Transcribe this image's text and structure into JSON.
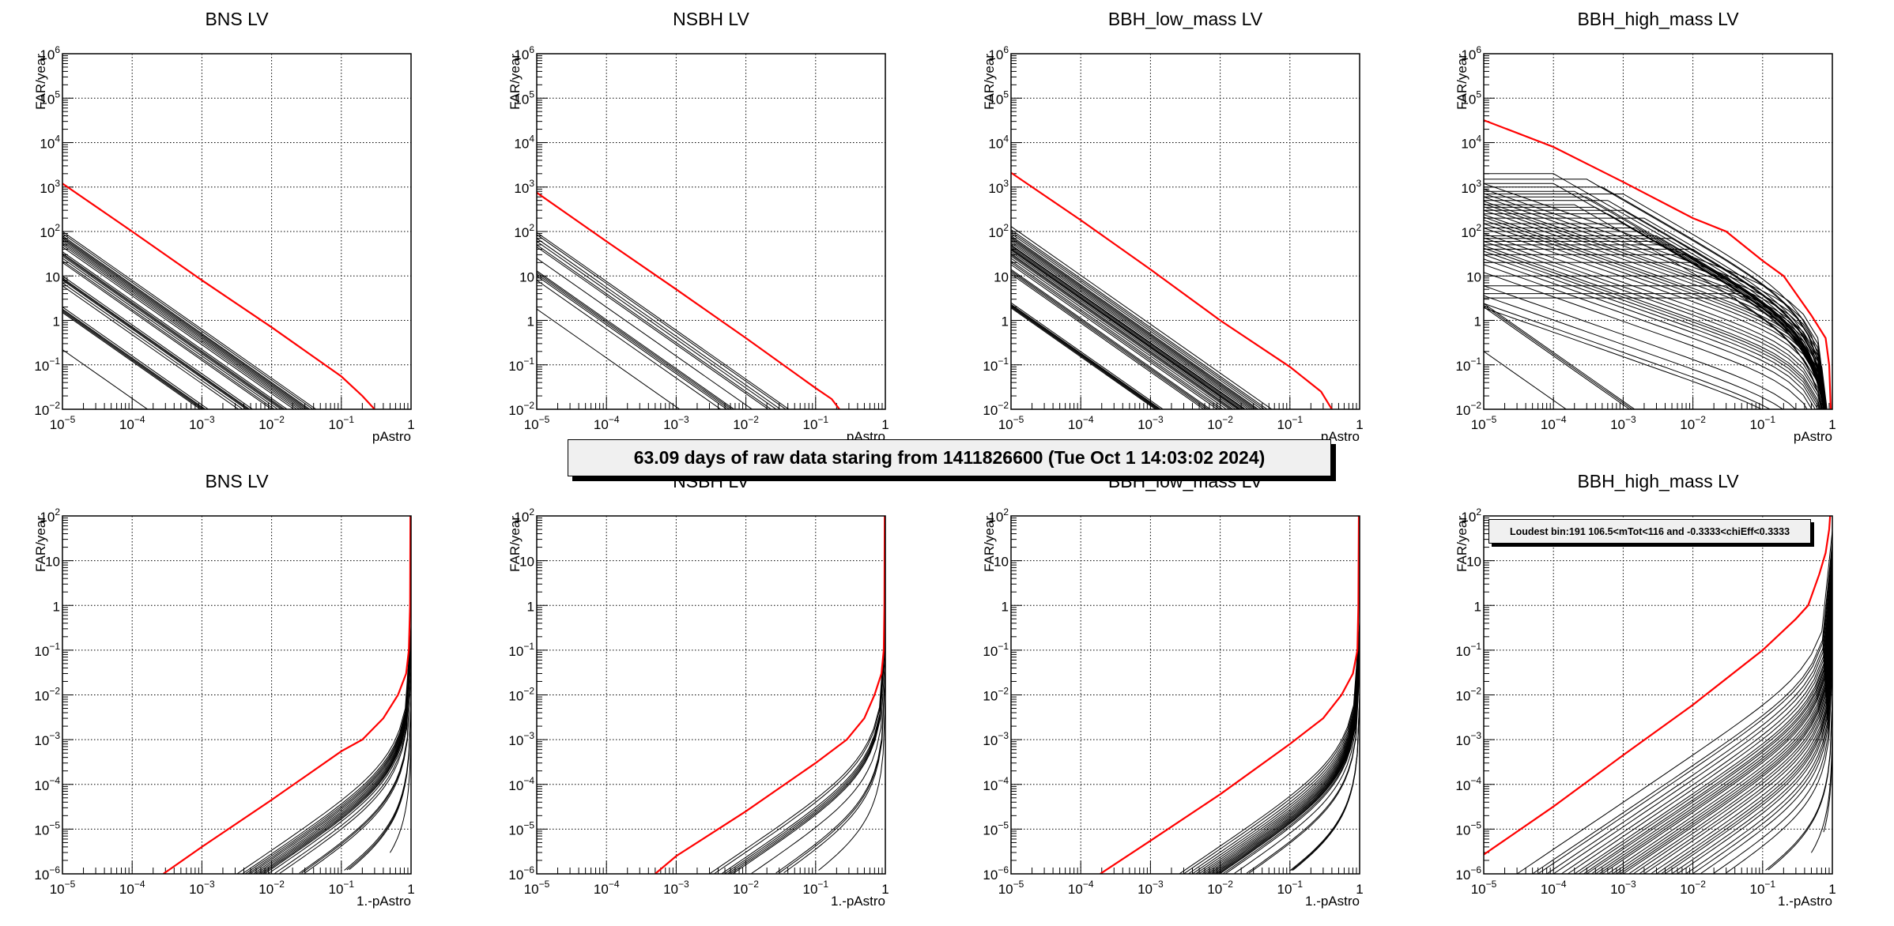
{
  "banner": "63.09 days of raw data staring from 1411826600 (Tue Oct  1 14:03:02 2024)",
  "legend_text": "Loudest bin:191 106.5<mTot<116 and -0.3333<chiEff<0.3333",
  "colors": {
    "highlight": "#ff0000",
    "curves": "#000000",
    "grid": "#000000",
    "banner_bg": "#f0f0f0"
  },
  "chart_data": [
    {
      "type": "line",
      "title": "BNS LV",
      "xlabel": "pAstro",
      "ylabel": "FAR/year",
      "xscale": "log",
      "yscale": "log",
      "xlim": [
        1e-05,
        1
      ],
      "ylim": [
        0.01,
        1000000.0
      ],
      "grid": true,
      "xticks": [
        "10^-5",
        "10^-4",
        "10^-3",
        "10^-2",
        "10^-1",
        "1"
      ],
      "yticks": [
        "10^-2",
        "10^-1",
        "1",
        "10",
        "10^2",
        "10^3",
        "10^4",
        "10^5",
        "10^6"
      ],
      "highlight_series": {
        "name": "red",
        "x": [
          1e-05,
          0.0001,
          0.001,
          0.01,
          0.1,
          0.2,
          0.3
        ],
        "y": [
          1200,
          100,
          8,
          0.7,
          0.055,
          0.02,
          0.01
        ]
      },
      "background_series": {
        "count_approx": 30,
        "slope": -1.1,
        "start_far_at_1e-5": [
          100,
          90,
          80,
          75,
          70,
          65,
          60,
          55,
          50,
          45,
          35,
          32,
          30,
          28,
          25,
          22,
          20,
          10,
          9,
          8.5,
          8,
          7,
          6,
          2,
          1.8,
          1.7,
          1.6,
          1.5,
          0.22
        ]
      }
    },
    {
      "type": "line",
      "title": "NSBH LV",
      "xlabel": "pAstro",
      "ylabel": "FAR/year",
      "xscale": "log",
      "yscale": "log",
      "xlim": [
        1e-05,
        1
      ],
      "ylim": [
        0.01,
        1000000.0
      ],
      "grid": true,
      "xticks": [
        "10^-5",
        "10^-4",
        "10^-3",
        "10^-2",
        "10^-1",
        "1"
      ],
      "yticks": [
        "10^-2",
        "10^-1",
        "1",
        "10",
        "10^2",
        "10^3",
        "10^4",
        "10^5",
        "10^6"
      ],
      "highlight_series": {
        "name": "red",
        "x": [
          1e-05,
          0.0001,
          0.001,
          0.01,
          0.1,
          0.17,
          0.22
        ],
        "y": [
          750,
          60,
          5,
          0.4,
          0.03,
          0.017,
          0.01
        ]
      },
      "background_series": {
        "count_approx": 14,
        "slope": -1.1,
        "start_far_at_1e-5": [
          95,
          85,
          70,
          60,
          50,
          45,
          25,
          13,
          12,
          11,
          10,
          8,
          1.8
        ]
      }
    },
    {
      "type": "line",
      "title": "BBH_low_mass LV",
      "xlabel": "pAstro",
      "ylabel": "FAR/year",
      "xscale": "log",
      "yscale": "log",
      "xlim": [
        1e-05,
        1
      ],
      "ylim": [
        0.01,
        1000000.0
      ],
      "grid": true,
      "xticks": [
        "10^-5",
        "10^-4",
        "10^-3",
        "10^-2",
        "10^-1",
        "1"
      ],
      "yticks": [
        "10^-2",
        "10^-1",
        "1",
        "10",
        "10^2",
        "10^3",
        "10^4",
        "10^5",
        "10^6"
      ],
      "highlight_series": {
        "name": "red",
        "x": [
          1e-05,
          0.0001,
          0.001,
          0.01,
          0.1,
          0.28,
          0.4
        ],
        "y": [
          2100,
          180,
          14,
          1.0,
          0.09,
          0.025,
          0.01
        ]
      },
      "background_series": {
        "count_approx": 40,
        "slope": -1.1,
        "start_far_at_1e-5": [
          130,
          110,
          100,
          90,
          80,
          75,
          70,
          65,
          60,
          55,
          50,
          48,
          45,
          42,
          40,
          38,
          35,
          32,
          30,
          28,
          25,
          22,
          20,
          18,
          14,
          13,
          12,
          11,
          2.5,
          2.3,
          2.2,
          2.1,
          2.0,
          1.9
        ]
      }
    },
    {
      "type": "line",
      "title": "BBH_high_mass LV",
      "xlabel": "pAstro",
      "ylabel": "FAR/year",
      "xscale": "log",
      "yscale": "log",
      "xlim": [
        1e-05,
        1
      ],
      "ylim": [
        0.01,
        1000000.0
      ],
      "grid": true,
      "xticks": [
        "10^-5",
        "10^-4",
        "10^-3",
        "10^-2",
        "10^-1",
        "1"
      ],
      "yticks": [
        "10^-2",
        "10^-1",
        "1",
        "10",
        "10^2",
        "10^3",
        "10^4",
        "10^5",
        "10^6"
      ],
      "highlight_series": {
        "name": "red",
        "x": [
          1e-05,
          0.0001,
          0.001,
          0.01,
          0.03,
          0.1,
          0.2,
          0.5,
          0.8,
          0.9,
          0.95
        ],
        "y": [
          32000,
          8000,
          1300,
          200,
          100,
          22,
          10,
          1.3,
          0.4,
          0.1,
          0.01
        ]
      },
      "background_series": {
        "count_approx": 120,
        "plateau_far": [
          2000,
          1500,
          1200,
          1000,
          800,
          700,
          600,
          500,
          400,
          350,
          300,
          250,
          200,
          150,
          120,
          100,
          80,
          70,
          60,
          50,
          40,
          30,
          20,
          10,
          6,
          4,
          3.2
        ],
        "plateau_end_pastro": [
          0.0001,
          0.0003,
          0.0001,
          0.0005,
          0.0002,
          0.001,
          0.0003,
          0.0006,
          0.0002,
          0.0004,
          0.001,
          0.0006,
          0.002,
          0.001,
          0.0015,
          0.002,
          0.003,
          0.005,
          0.003,
          0.005,
          0.01,
          0.008,
          0.01,
          0.03,
          0.03,
          0.05,
          0.04
        ],
        "low_start_far": [
          2.4,
          2.2,
          2.0,
          0.2
        ]
      }
    },
    {
      "type": "line",
      "title": "BNS LV",
      "xlabel": "1.-pAstro",
      "ylabel": "FAR/year",
      "xscale": "log",
      "yscale": "log",
      "xlim": [
        1e-05,
        1
      ],
      "ylim": [
        1e-06,
        100
      ],
      "grid": true,
      "xticks": [
        "10^-5",
        "10^-4",
        "10^-3",
        "10^-2",
        "10^-1",
        "1"
      ],
      "yticks": [
        "10^-6",
        "10^-5",
        "10^-4",
        "10^-3",
        "10^-2",
        "10^-1",
        "1",
        "10",
        "10^2"
      ],
      "highlight_series": {
        "name": "red",
        "x": [
          0.00028,
          0.001,
          0.01,
          0.1,
          0.2,
          0.4,
          0.65,
          0.85,
          0.93,
          0.97,
          0.98
        ],
        "y": [
          1e-06,
          4e-06,
          4.5e-05,
          0.00055,
          0.001,
          0.003,
          0.01,
          0.03,
          0.1,
          1,
          100
        ]
      },
      "background_series": {
        "count_approx": 30,
        "start_x_at_1e-6": [
          0.0032,
          0.0038,
          0.0042,
          0.0046,
          0.005,
          0.0055,
          0.006,
          0.0065,
          0.007,
          0.0075,
          0.008,
          0.009,
          0.011,
          0.013,
          0.025,
          0.027,
          0.03,
          0.11,
          0.12,
          0.13,
          0.5
        ]
      }
    },
    {
      "type": "line",
      "title": "NSBH LV",
      "xlabel": "1.-pAstro",
      "ylabel": "FAR/year",
      "xscale": "log",
      "yscale": "log",
      "xlim": [
        1e-05,
        1
      ],
      "ylim": [
        1e-06,
        100
      ],
      "grid": true,
      "xticks": [
        "10^-5",
        "10^-4",
        "10^-3",
        "10^-2",
        "10^-1",
        "1"
      ],
      "yticks": [
        "10^-6",
        "10^-5",
        "10^-4",
        "10^-3",
        "10^-2",
        "10^-1",
        "1",
        "10",
        "10^2"
      ],
      "highlight_series": {
        "name": "red",
        "x": [
          0.0005,
          0.001,
          0.01,
          0.1,
          0.28,
          0.5,
          0.7,
          0.88,
          0.95,
          0.97,
          0.98
        ],
        "y": [
          1e-06,
          2.5e-06,
          2.5e-05,
          0.0003,
          0.001,
          0.003,
          0.01,
          0.03,
          0.1,
          1,
          100
        ]
      },
      "background_series": {
        "count_approx": 14,
        "start_x_at_1e-6": [
          0.003,
          0.0035,
          0.0045,
          0.005,
          0.0055,
          0.006,
          0.0065,
          0.012,
          0.027,
          0.03,
          0.035,
          0.11
        ]
      }
    },
    {
      "type": "line",
      "title": "BBH_low_mass LV",
      "xlabel": "1.-pAstro",
      "ylabel": "FAR/year",
      "xscale": "log",
      "yscale": "log",
      "xlim": [
        1e-05,
        1
      ],
      "ylim": [
        1e-06,
        100
      ],
      "grid": true,
      "xticks": [
        "10^-5",
        "10^-4",
        "10^-3",
        "10^-2",
        "10^-1",
        "1"
      ],
      "yticks": [
        "10^-6",
        "10^-5",
        "10^-4",
        "10^-3",
        "10^-2",
        "10^-1",
        "1",
        "10",
        "10^2"
      ],
      "highlight_series": {
        "name": "red",
        "x": [
          0.00019,
          0.001,
          0.01,
          0.1,
          0.3,
          0.55,
          0.8,
          0.93,
          0.96,
          0.975
        ],
        "y": [
          1e-06,
          5.5e-06,
          6e-05,
          0.0008,
          0.003,
          0.01,
          0.03,
          0.1,
          1,
          100
        ]
      },
      "background_series": {
        "count_approx": 40,
        "start_x_at_1e-6": [
          0.0026,
          0.003,
          0.0035,
          0.004,
          0.0045,
          0.005,
          0.0055,
          0.006,
          0.0065,
          0.007,
          0.0075,
          0.008,
          0.0085,
          0.009,
          0.0095,
          0.01,
          0.011,
          0.012,
          0.016,
          0.024,
          0.026,
          0.1,
          0.105,
          0.11
        ]
      }
    },
    {
      "type": "line",
      "title": "BBH_high_mass LV",
      "xlabel": "1.-pAstro",
      "ylabel": "FAR/year",
      "xscale": "log",
      "yscale": "log",
      "xlim": [
        1e-05,
        1
      ],
      "ylim": [
        1e-06,
        100
      ],
      "grid": true,
      "xticks": [
        "10^-5",
        "10^-4",
        "10^-3",
        "10^-2",
        "10^-1",
        "1"
      ],
      "yticks": [
        "10^-6",
        "10^-5",
        "10^-4",
        "10^-3",
        "10^-2",
        "10^-1",
        "1",
        "10",
        "10^2"
      ],
      "annotation": "Loudest bin:191 106.5<mTot<116 and -0.3333<chiEff<0.3333",
      "highlight_series": {
        "name": "red",
        "x": [
          1e-05,
          0.0001,
          0.001,
          0.01,
          0.1,
          0.3,
          0.45,
          0.65,
          0.8,
          0.9,
          0.93
        ],
        "y": [
          2.7e-06,
          3.2e-05,
          0.00045,
          0.006,
          0.1,
          0.5,
          1,
          5,
          15,
          50,
          100
        ]
      },
      "background_series": {
        "count_approx": 120,
        "start_x_at_1e-6": [
          3e-05,
          5e-05,
          6e-05,
          8e-05,
          0.0001,
          0.00013,
          0.00016,
          0.0002,
          0.00023,
          0.00027,
          0.0003,
          0.00035,
          0.0004,
          0.00045,
          0.0005,
          0.0006,
          0.0007,
          0.0008,
          0.0009,
          0.001,
          0.0012,
          0.0014,
          0.0017,
          0.002,
          0.0025,
          0.003,
          0.0035,
          0.004,
          0.005,
          0.006,
          0.008,
          0.01,
          0.013,
          0.02,
          0.03,
          0.11,
          0.12,
          0.5,
          0.75
        ]
      }
    }
  ]
}
